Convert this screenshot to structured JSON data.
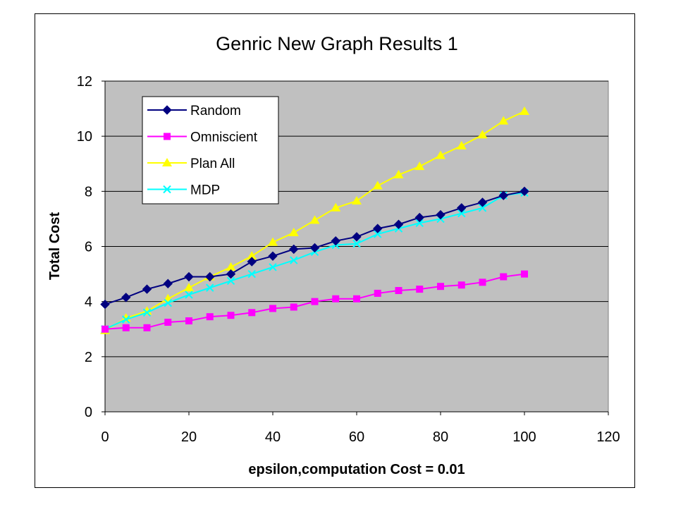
{
  "chart_data": {
    "type": "line",
    "title": "Genric New Graph Results 1",
    "xlabel": "epsilon,computation Cost = 0.01",
    "ylabel": "Total Cost",
    "xlim": [
      0,
      120
    ],
    "ylim": [
      0,
      12
    ],
    "xticks": [
      0,
      20,
      40,
      60,
      80,
      100,
      120
    ],
    "yticks": [
      0,
      2,
      4,
      6,
      8,
      10,
      12
    ],
    "grid": "horizontal",
    "plot_background": "#c0c0c0",
    "legend_position": "upper-left inside plot",
    "x": [
      0,
      5,
      10,
      15,
      20,
      25,
      30,
      35,
      40,
      45,
      50,
      55,
      60,
      65,
      70,
      75,
      80,
      85,
      90,
      95,
      100
    ],
    "series": [
      {
        "name": "Random",
        "color": "#000080",
        "marker": "diamond",
        "values": [
          3.9,
          4.15,
          4.45,
          4.65,
          4.9,
          4.9,
          5.0,
          5.45,
          5.65,
          5.9,
          5.95,
          6.2,
          6.35,
          6.65,
          6.8,
          7.05,
          7.15,
          7.4,
          7.6,
          7.85,
          8.0
        ]
      },
      {
        "name": "Omniscient",
        "color": "#ff00ff",
        "marker": "square",
        "values": [
          3.0,
          3.05,
          3.05,
          3.25,
          3.3,
          3.45,
          3.5,
          3.6,
          3.75,
          3.8,
          4.0,
          4.1,
          4.1,
          4.3,
          4.4,
          4.45,
          4.55,
          4.6,
          4.7,
          4.9,
          5.0
        ]
      },
      {
        "name": "Plan All",
        "color": "#ffff00",
        "marker": "triangle",
        "values": [
          2.95,
          3.4,
          3.65,
          4.1,
          4.5,
          4.9,
          5.25,
          5.65,
          6.15,
          6.5,
          6.95,
          7.4,
          7.65,
          8.2,
          8.6,
          8.9,
          9.3,
          9.65,
          10.05,
          10.55,
          10.9
        ]
      },
      {
        "name": "MDP",
        "color": "#00ffff",
        "marker": "x",
        "values": [
          3.0,
          3.35,
          3.6,
          3.95,
          4.25,
          4.5,
          4.75,
          5.0,
          5.25,
          5.5,
          5.8,
          6.05,
          6.1,
          6.45,
          6.65,
          6.85,
          7.0,
          7.2,
          7.4,
          7.85,
          7.95
        ]
      }
    ]
  }
}
